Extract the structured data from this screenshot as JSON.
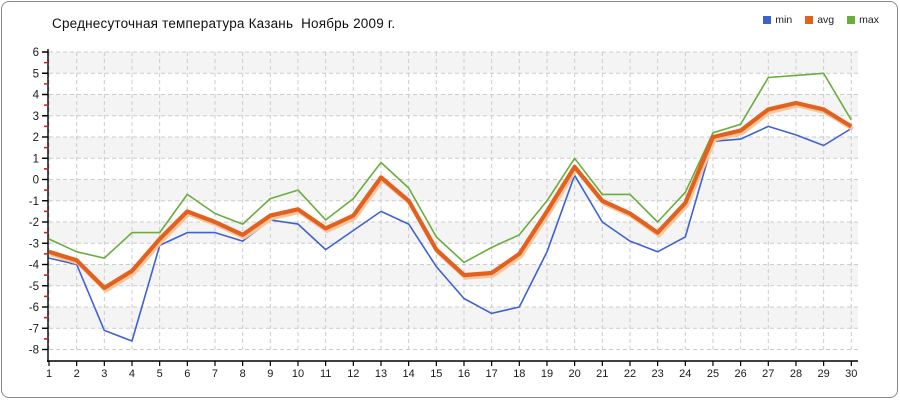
{
  "header": {
    "title": "Среднесуточная температура Казань  Ноябрь 2009 г."
  },
  "legend": [
    {
      "label": "min",
      "color": "#3f62d2"
    },
    {
      "label": "avg",
      "color": "#e2611f"
    },
    {
      "label": "max",
      "color": "#6aad3d"
    }
  ],
  "colors": {
    "grid": "#cccccc",
    "band": "#f4f4f4",
    "axis": "#000000",
    "minor_tick": "#cc2222",
    "tick_label": "#1a1a1a",
    "avg_shadow": "#f4c69c"
  },
  "chart_data": {
    "type": "line",
    "title": "Среднесуточная температура Казань  Ноябрь 2009 г.",
    "xlabel": "",
    "ylabel": "",
    "x": [
      1,
      2,
      3,
      4,
      5,
      6,
      7,
      8,
      9,
      10,
      11,
      12,
      13,
      14,
      15,
      16,
      17,
      18,
      19,
      20,
      21,
      22,
      23,
      24,
      25,
      26,
      27,
      28,
      29,
      30
    ],
    "ylim": [
      -8,
      6
    ],
    "y_major_step": 1,
    "y_minor_step": 0.5,
    "grid": "dashed",
    "zebra_bands": true,
    "legend_position": "top-right",
    "series": [
      {
        "name": "min",
        "color": "#3f62d2",
        "width": 1.6,
        "values": [
          -3.7,
          -4.0,
          -7.1,
          -7.6,
          -3.1,
          -2.5,
          -2.5,
          -2.9,
          -1.9,
          -2.1,
          -3.3,
          -2.4,
          -1.5,
          -2.1,
          -4.1,
          -5.6,
          -6.3,
          -6.0,
          -3.4,
          0.2,
          -2.0,
          -2.9,
          -3.4,
          -2.7,
          1.8,
          1.9,
          2.5,
          2.1,
          1.6,
          2.4
        ]
      },
      {
        "name": "avg",
        "color": "#e2611f",
        "width": 4.2,
        "shadow": "#f4c69c",
        "values": [
          -3.4,
          -3.8,
          -5.1,
          -4.3,
          -2.8,
          -1.5,
          -2.0,
          -2.6,
          -1.7,
          -1.4,
          -2.3,
          -1.7,
          0.1,
          -1.0,
          -3.3,
          -4.5,
          -4.4,
          -3.5,
          -1.5,
          0.6,
          -1.0,
          -1.6,
          -2.5,
          -1.1,
          2.0,
          2.3,
          3.3,
          3.6,
          3.3,
          2.5
        ]
      },
      {
        "name": "max",
        "color": "#6aad3d",
        "width": 1.6,
        "values": [
          -2.8,
          -3.4,
          -3.7,
          -2.5,
          -2.5,
          -0.7,
          -1.6,
          -2.1,
          -0.9,
          -0.5,
          -1.9,
          -0.9,
          0.8,
          -0.4,
          -2.7,
          -3.9,
          -3.2,
          -2.6,
          -1.0,
          1.0,
          -0.7,
          -0.7,
          -2.0,
          -0.6,
          2.2,
          2.6,
          4.8,
          4.9,
          5.0,
          2.8
        ]
      }
    ]
  }
}
